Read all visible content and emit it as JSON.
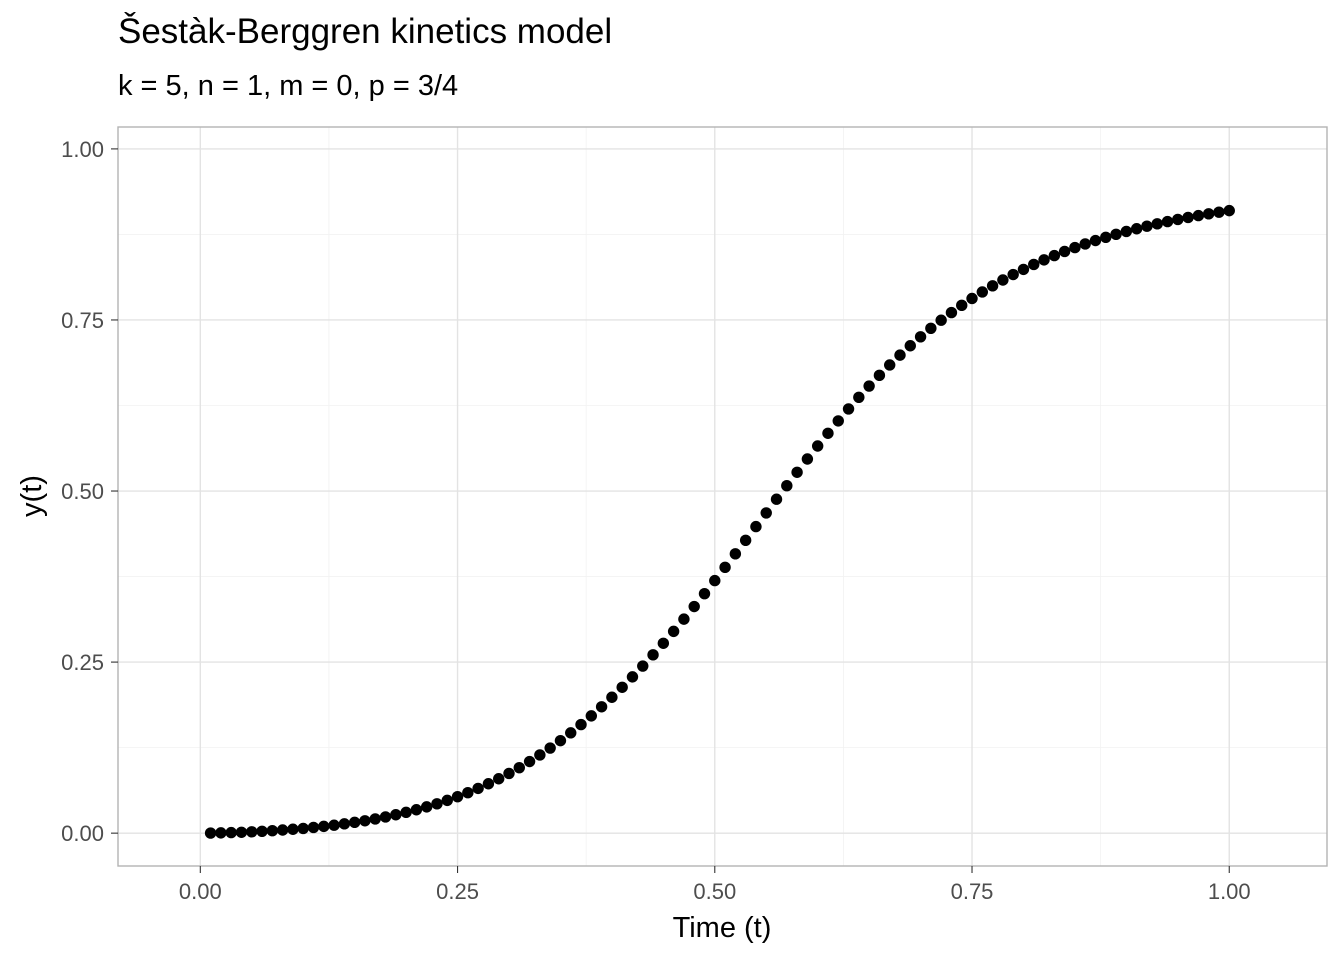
{
  "chart_data": {
    "type": "scatter",
    "title": "Šestàk-Berggren kinetics model",
    "subtitle": "k = 5, n = 1, m = 0, p = 3/4",
    "xlabel": "Time (t)",
    "ylabel": "y(t)",
    "xlim": [
      -0.08,
      1.095
    ],
    "ylim": [
      -0.048,
      1.032
    ],
    "x_ticks": [
      0,
      0.25,
      0.5,
      0.75,
      1
    ],
    "y_ticks": [
      0,
      0.25,
      0.5,
      0.75,
      1
    ],
    "x_tick_labels": [
      "0.00",
      "0.25",
      "0.50",
      "0.75",
      "1.00"
    ],
    "y_tick_labels": [
      "0.00",
      "0.25",
      "0.50",
      "0.75",
      "1.00"
    ],
    "x_minor_ticks": [
      0.125,
      0.375,
      0.625,
      0.875
    ],
    "y_minor_ticks": [
      0.125,
      0.375,
      0.625,
      0.875
    ],
    "grid": true,
    "legend": "none",
    "point_color": "#000000",
    "series": [
      {
        "x": [
          0.01,
          0.02,
          0.03,
          0.04,
          0.05,
          0.06,
          0.07,
          0.08,
          0.09,
          0.1,
          0.11,
          0.12,
          0.13,
          0.14,
          0.15,
          0.16,
          0.17,
          0.18,
          0.19,
          0.2,
          0.21,
          0.22,
          0.23,
          0.24,
          0.25,
          0.26,
          0.27,
          0.28,
          0.29,
          0.3,
          0.31,
          0.32,
          0.33,
          0.34,
          0.35,
          0.36,
          0.37,
          0.38,
          0.39,
          0.4,
          0.41,
          0.42,
          0.43,
          0.44,
          0.45,
          0.46,
          0.47,
          0.48,
          0.49,
          0.5,
          0.51,
          0.52,
          0.53,
          0.54,
          0.55,
          0.56,
          0.57,
          0.58,
          0.59,
          0.6,
          0.61,
          0.62,
          0.63,
          0.64,
          0.65,
          0.66,
          0.67,
          0.68,
          0.69,
          0.7,
          0.71,
          0.72,
          0.73,
          0.74,
          0.75,
          0.76,
          0.77,
          0.78,
          0.79,
          0.8,
          0.81,
          0.82,
          0.83,
          0.84,
          0.85,
          0.86,
          0.87,
          0.88,
          0.89,
          0.9,
          0.91,
          0.92,
          0.93,
          0.94,
          0.95,
          0.96,
          0.97,
          0.98,
          0.99,
          1.0
        ],
        "y": [
          0.0001,
          0.0004,
          0.0008,
          0.0013,
          0.002,
          0.0027,
          0.0036,
          0.0046,
          0.0057,
          0.0069,
          0.0084,
          0.0099,
          0.0116,
          0.0136,
          0.0158,
          0.0181,
          0.0208,
          0.0237,
          0.0269,
          0.0304,
          0.0342,
          0.0384,
          0.0429,
          0.0479,
          0.0533,
          0.0591,
          0.0654,
          0.0722,
          0.0795,
          0.0873,
          0.0957,
          0.1047,
          0.1143,
          0.1244,
          0.1352,
          0.1466,
          0.1587,
          0.1714,
          0.1847,
          0.1986,
          0.2132,
          0.2284,
          0.2442,
          0.2606,
          0.2775,
          0.2949,
          0.3128,
          0.3312,
          0.35,
          0.3691,
          0.3885,
          0.4082,
          0.428,
          0.448,
          0.468,
          0.488,
          0.5078,
          0.5274,
          0.5468,
          0.5658,
          0.5844,
          0.6025,
          0.62,
          0.637,
          0.6534,
          0.6691,
          0.6842,
          0.6986,
          0.7123,
          0.7254,
          0.7378,
          0.7496,
          0.7608,
          0.7714,
          0.7814,
          0.7909,
          0.7999,
          0.8084,
          0.8164,
          0.8239,
          0.8311,
          0.8378,
          0.8441,
          0.8501,
          0.8558,
          0.8611,
          0.8661,
          0.8708,
          0.8752,
          0.8794,
          0.8833,
          0.887,
          0.8905,
          0.8938,
          0.8969,
          0.8998,
          0.9025,
          0.9051,
          0.9075,
          0.9098
        ]
      }
    ]
  }
}
